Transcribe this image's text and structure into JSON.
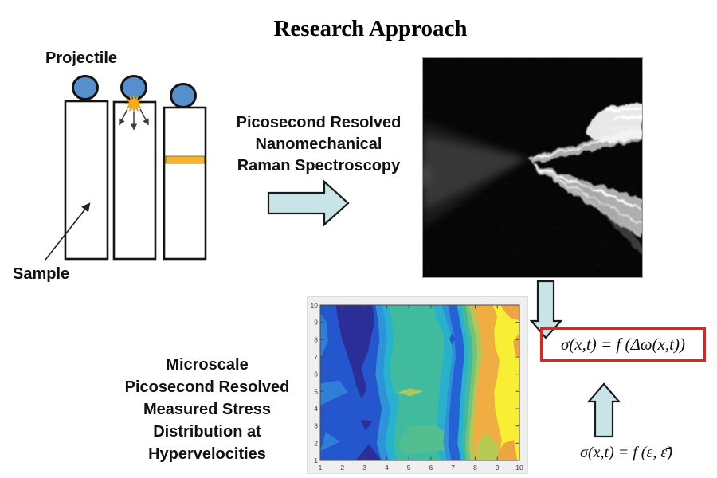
{
  "slide": {
    "title": "Research Approach",
    "background": "#ffffff"
  },
  "schematic": {
    "projectile_label": "Projectile",
    "sample_label": "Sample",
    "projectile_color": "#5590cc",
    "bar_fill": "#ffffff",
    "outline_color": "#141414",
    "impact_star_color": "#f9ae1c",
    "raman_band_color": "#f6b52b"
  },
  "method_text": {
    "lines": [
      "Picosecond Resolved",
      "Nanomechanical",
      "Raman Spectroscopy"
    ]
  },
  "result_text": {
    "lines": [
      "Microscale",
      "Picosecond Resolved",
      "Measured Stress",
      "Distribution at",
      "Hypervelocities"
    ]
  },
  "equations": {
    "stress_raman": "σ(x,t) = f (Δω(x,t))",
    "stress_strain": "σ(x,t) = f (ε, ε̄̇)",
    "box_border_color": "#ee1c1c"
  },
  "flow_arrows": {
    "fill": "#c9e4e6",
    "outline": "#1a1a1a"
  },
  "chart_data": {
    "type": "contour",
    "title": "",
    "xlabel": "",
    "ylabel": "",
    "xlim": [
      1,
      10
    ],
    "ylim": [
      1,
      10
    ],
    "xticks": [
      1,
      2,
      3,
      4,
      5,
      6,
      7,
      8,
      9,
      10
    ],
    "yticks": [
      1,
      2,
      3,
      4,
      5,
      6,
      7,
      8,
      9,
      10
    ],
    "grid": false,
    "legend": "none",
    "colormap": "parula",
    "figure_bg": "#efeff0",
    "axis_color": "#4a4a4a",
    "tick_label_color": "#3c3c3c",
    "values": [
      [
        0.22,
        0.12,
        0.05,
        0.3,
        0.5,
        0.5,
        0.42,
        0.68,
        0.8,
        0.84
      ],
      [
        0.26,
        0.22,
        0.18,
        0.32,
        0.5,
        0.5,
        0.42,
        0.62,
        0.74,
        0.88
      ],
      [
        0.22,
        0.2,
        0.08,
        0.32,
        0.5,
        0.5,
        0.38,
        0.7,
        0.8,
        0.95
      ],
      [
        0.28,
        0.24,
        0.18,
        0.36,
        0.5,
        0.5,
        0.42,
        0.7,
        0.82,
        0.95
      ],
      [
        0.3,
        0.28,
        0.08,
        0.42,
        0.66,
        0.52,
        0.42,
        0.72,
        0.86,
        0.95
      ],
      [
        0.26,
        0.22,
        0.14,
        0.4,
        0.52,
        0.52,
        0.42,
        0.72,
        0.82,
        0.95
      ],
      [
        0.22,
        0.12,
        0.06,
        0.4,
        0.5,
        0.52,
        0.42,
        0.72,
        0.78,
        0.9
      ],
      [
        0.22,
        0.08,
        0.04,
        0.4,
        0.5,
        0.54,
        0.34,
        0.72,
        0.82,
        0.95
      ],
      [
        0.22,
        0.05,
        0.04,
        0.4,
        0.5,
        0.55,
        0.42,
        0.66,
        0.86,
        0.95
      ],
      [
        0.22,
        0.05,
        0.1,
        0.46,
        0.5,
        0.5,
        0.42,
        0.7,
        0.8,
        0.85
      ]
    ],
    "bands": [
      {
        "color": "#2456ce",
        "points": [
          [
            1,
            1
          ],
          [
            1,
            10
          ],
          [
            10,
            10
          ],
          [
            10,
            1
          ]
        ]
      },
      {
        "color": "#2f7ed8",
        "points": [
          [
            1,
            4.2
          ],
          [
            2.25,
            4.95
          ],
          [
            1.85,
            5.65
          ],
          [
            1,
            5.45
          ]
        ]
      },
      {
        "color": "#2f7ed8",
        "points": [
          [
            1,
            1.55
          ],
          [
            1.9,
            2.1
          ],
          [
            1.25,
            2.65
          ]
        ]
      },
      {
        "color": "#2f7ed8",
        "points": [
          [
            1,
            6.9
          ],
          [
            1.35,
            7.9
          ],
          [
            1.3,
            9.0
          ],
          [
            1,
            9.5
          ]
        ]
      },
      {
        "color": "#2b2e97",
        "points": [
          [
            1.7,
            10
          ],
          [
            3.35,
            10
          ],
          [
            3.45,
            9
          ],
          [
            3.3,
            8.2
          ],
          [
            3.15,
            7.3
          ],
          [
            2.85,
            6.3
          ],
          [
            3.1,
            5.2
          ],
          [
            2.88,
            4.55
          ],
          [
            2.62,
            5.35
          ],
          [
            2.45,
            6.2
          ],
          [
            2.2,
            7.2
          ],
          [
            1.95,
            8.2
          ],
          [
            1.8,
            9.2
          ]
        ]
      },
      {
        "color": "#2b2e97",
        "points": [
          [
            2.6,
            1
          ],
          [
            3.75,
            1
          ],
          [
            3.2,
            1.95
          ]
        ]
      },
      {
        "color": "#2b2e97",
        "points": [
          [
            2.82,
            3.35
          ],
          [
            3.38,
            3.3
          ],
          [
            3.05,
            2.72
          ]
        ]
      },
      {
        "color": "#2f93d9",
        "points": [
          [
            3.5,
            10
          ],
          [
            3.62,
            9
          ],
          [
            3.68,
            8
          ],
          [
            3.56,
            7
          ],
          [
            3.5,
            6
          ],
          [
            3.62,
            5
          ],
          [
            3.78,
            4
          ],
          [
            3.66,
            3
          ],
          [
            3.55,
            2
          ],
          [
            3.76,
            1
          ],
          [
            10,
            1
          ],
          [
            10,
            10
          ]
        ]
      },
      {
        "color": "#27b2cf",
        "points": [
          [
            3.8,
            10
          ],
          [
            3.95,
            9
          ],
          [
            4.02,
            8
          ],
          [
            3.9,
            7
          ],
          [
            3.85,
            6
          ],
          [
            3.97,
            5
          ],
          [
            4.17,
            4
          ],
          [
            4.06,
            3
          ],
          [
            3.92,
            2
          ],
          [
            4.12,
            1
          ],
          [
            10,
            1
          ],
          [
            10,
            10
          ]
        ]
      },
      {
        "color": "#41bb9e",
        "points": [
          [
            4.08,
            10
          ],
          [
            4.25,
            9
          ],
          [
            4.32,
            8
          ],
          [
            4.2,
            7
          ],
          [
            4.16,
            6
          ],
          [
            4.32,
            5
          ],
          [
            4.56,
            4.6
          ],
          [
            4.5,
            4
          ],
          [
            4.4,
            3
          ],
          [
            4.32,
            2
          ],
          [
            4.46,
            1
          ],
          [
            10,
            1
          ],
          [
            10,
            10
          ]
        ]
      },
      {
        "color": "#29b0cd",
        "points": [
          [
            6.1,
            10
          ],
          [
            6.32,
            9
          ],
          [
            6.55,
            8.4
          ],
          [
            6.6,
            7.4
          ],
          [
            6.5,
            6.4
          ],
          [
            6.4,
            5.4
          ],
          [
            6.35,
            4.4
          ],
          [
            6.28,
            3.4
          ],
          [
            6.2,
            2.4
          ],
          [
            6.32,
            1.4
          ],
          [
            6.42,
            1
          ],
          [
            10,
            1
          ],
          [
            10,
            10
          ]
        ]
      },
      {
        "color": "#53be90",
        "points": [
          [
            4.8,
            1.35
          ],
          [
            6.7,
            1.6
          ],
          [
            6.85,
            2.4
          ],
          [
            6.2,
            3.1
          ],
          [
            5.0,
            2.95
          ],
          [
            4.55,
            2.1
          ]
        ]
      },
      {
        "color": "#2f8fd9",
        "points": [
          [
            6.5,
            10
          ],
          [
            6.72,
            9
          ],
          [
            6.92,
            8.3
          ],
          [
            6.97,
            7.2
          ],
          [
            6.86,
            6
          ],
          [
            6.76,
            5
          ],
          [
            6.7,
            4
          ],
          [
            6.62,
            3
          ],
          [
            6.56,
            2
          ],
          [
            6.72,
            1
          ],
          [
            10,
            1
          ],
          [
            10,
            10
          ]
        ]
      },
      {
        "color": "#2462d6",
        "points": [
          [
            6.78,
            10
          ],
          [
            6.92,
            9
          ],
          [
            7.06,
            8.2
          ],
          [
            7.12,
            7
          ],
          [
            7.0,
            6
          ],
          [
            6.92,
            5
          ],
          [
            6.86,
            4
          ],
          [
            6.8,
            3
          ],
          [
            6.78,
            2
          ],
          [
            6.92,
            1
          ],
          [
            10,
            1
          ],
          [
            10,
            10
          ]
        ]
      },
      {
        "color": "#27b2cf",
        "points": [
          [
            7.18,
            10
          ],
          [
            7.32,
            9
          ],
          [
            7.46,
            8
          ],
          [
            7.5,
            7
          ],
          [
            7.42,
            6
          ],
          [
            7.36,
            5
          ],
          [
            7.3,
            4
          ],
          [
            7.26,
            3
          ],
          [
            7.2,
            2
          ],
          [
            7.36,
            1
          ],
          [
            10,
            1
          ],
          [
            10,
            10
          ]
        ]
      },
      {
        "color": "#41bb9e",
        "points": [
          [
            7.36,
            10
          ],
          [
            7.5,
            9
          ],
          [
            7.66,
            8
          ],
          [
            7.7,
            7
          ],
          [
            7.62,
            6
          ],
          [
            7.56,
            5
          ],
          [
            7.5,
            4
          ],
          [
            7.46,
            3
          ],
          [
            7.4,
            2
          ],
          [
            7.52,
            1
          ],
          [
            10,
            1
          ],
          [
            10,
            10
          ]
        ]
      },
      {
        "color": "#79c378",
        "points": [
          [
            7.56,
            10
          ],
          [
            7.7,
            9
          ],
          [
            7.86,
            8
          ],
          [
            7.9,
            7
          ],
          [
            7.82,
            6
          ],
          [
            7.76,
            5
          ],
          [
            7.7,
            4
          ],
          [
            7.62,
            3
          ],
          [
            7.56,
            2
          ],
          [
            7.62,
            1
          ],
          [
            10,
            1
          ],
          [
            10,
            10
          ]
        ]
      },
      {
        "color": "#abc95c",
        "points": [
          [
            7.72,
            10
          ],
          [
            7.9,
            9
          ],
          [
            8.06,
            8
          ],
          [
            8.1,
            7
          ],
          [
            8.0,
            6
          ],
          [
            7.92,
            5
          ],
          [
            7.86,
            4
          ],
          [
            7.76,
            3
          ],
          [
            7.72,
            2
          ],
          [
            7.78,
            1
          ],
          [
            10,
            1
          ],
          [
            10,
            10
          ]
        ]
      },
      {
        "color": "#f0ae42",
        "points": [
          [
            7.88,
            10
          ],
          [
            8.12,
            9
          ],
          [
            8.26,
            8
          ],
          [
            8.3,
            7
          ],
          [
            8.16,
            6
          ],
          [
            8.06,
            5
          ],
          [
            8.0,
            4
          ],
          [
            7.92,
            3
          ],
          [
            7.88,
            2
          ],
          [
            7.98,
            1
          ],
          [
            10,
            1
          ],
          [
            10,
            10
          ]
        ]
      },
      {
        "color": "#f8ee33",
        "points": [
          [
            8.8,
            10
          ],
          [
            9.0,
            9.3
          ],
          [
            8.86,
            8.6
          ],
          [
            8.9,
            7.6
          ],
          [
            9.1,
            6.8
          ],
          [
            9.0,
            5.8
          ],
          [
            8.86,
            5
          ],
          [
            8.9,
            4
          ],
          [
            9.05,
            3
          ],
          [
            9.2,
            2.2
          ],
          [
            9.12,
            1.6
          ],
          [
            9.32,
            1
          ],
          [
            10,
            1
          ],
          [
            10,
            10
          ]
        ]
      },
      {
        "color": "#eda63f",
        "points": [
          [
            9.15,
            10
          ],
          [
            10,
            10
          ],
          [
            10,
            9.1
          ],
          [
            9.6,
            9.25
          ],
          [
            9.35,
            9.6
          ]
        ]
      },
      {
        "color": "#eda63f",
        "points": [
          [
            10,
            8.4
          ],
          [
            9.72,
            7.9
          ],
          [
            9.8,
            7.2
          ],
          [
            10,
            6.95
          ]
        ]
      },
      {
        "color": "#b9ca54",
        "points": [
          [
            8.05,
            1
          ],
          [
            9.1,
            1
          ],
          [
            9.0,
            2.0
          ],
          [
            8.5,
            2.6
          ],
          [
            8.1,
            2.0
          ]
        ]
      },
      {
        "color": "#eda63f",
        "points": [
          [
            9.0,
            1
          ],
          [
            9.9,
            1
          ],
          [
            9.75,
            2.2
          ],
          [
            9.3,
            2.0
          ],
          [
            9.05,
            1.5
          ]
        ]
      },
      {
        "color": "#2456ce",
        "points": [
          [
            6.96,
            8.38
          ],
          [
            7.1,
            8.05
          ],
          [
            6.96,
            7.68
          ],
          [
            6.84,
            8.05
          ]
        ]
      },
      {
        "color": "#a9c95e",
        "points": [
          [
            4.5,
            4.95
          ],
          [
            5.05,
            5.18
          ],
          [
            5.65,
            5.0
          ],
          [
            5.05,
            4.72
          ]
        ]
      },
      {
        "color": "#2456ce",
        "points": [
          [
            6.98,
            3.2
          ],
          [
            7.04,
            3.2
          ],
          [
            7.04,
            2.3
          ],
          [
            6.98,
            2.3
          ]
        ]
      }
    ]
  }
}
